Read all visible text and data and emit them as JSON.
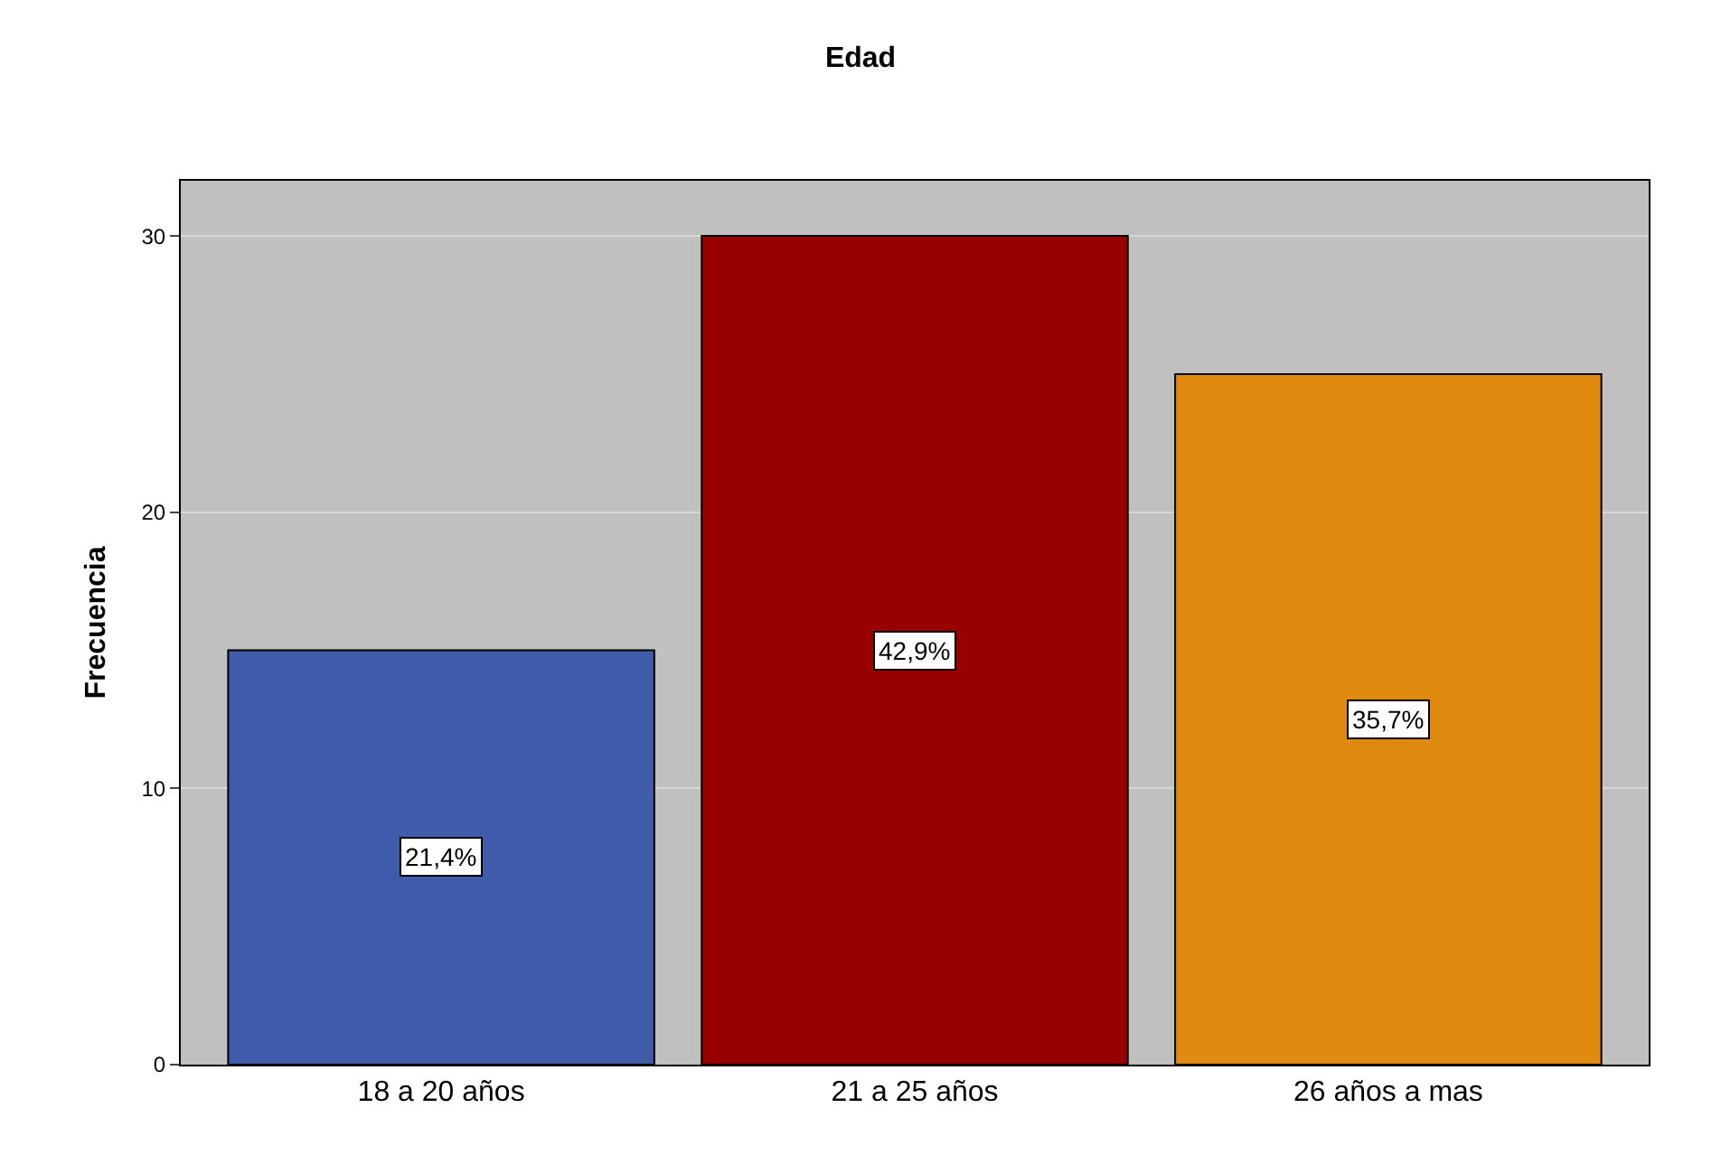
{
  "chart_data": {
    "type": "bar",
    "title": "Edad",
    "ylabel": "Frecuencia",
    "categories": [
      "18 a 20 años",
      "21 a 25 años",
      "26 años a mas"
    ],
    "values": [
      15,
      30,
      25
    ],
    "colors": [
      "#3f5ba9",
      "#990000",
      "#e08b10"
    ],
    "annotations": [
      "21,4%",
      "42,9%",
      "35,7%"
    ],
    "ylim": [
      0,
      32
    ],
    "yticks": [
      0,
      10,
      20,
      30
    ],
    "grid": "y",
    "legend": false
  }
}
